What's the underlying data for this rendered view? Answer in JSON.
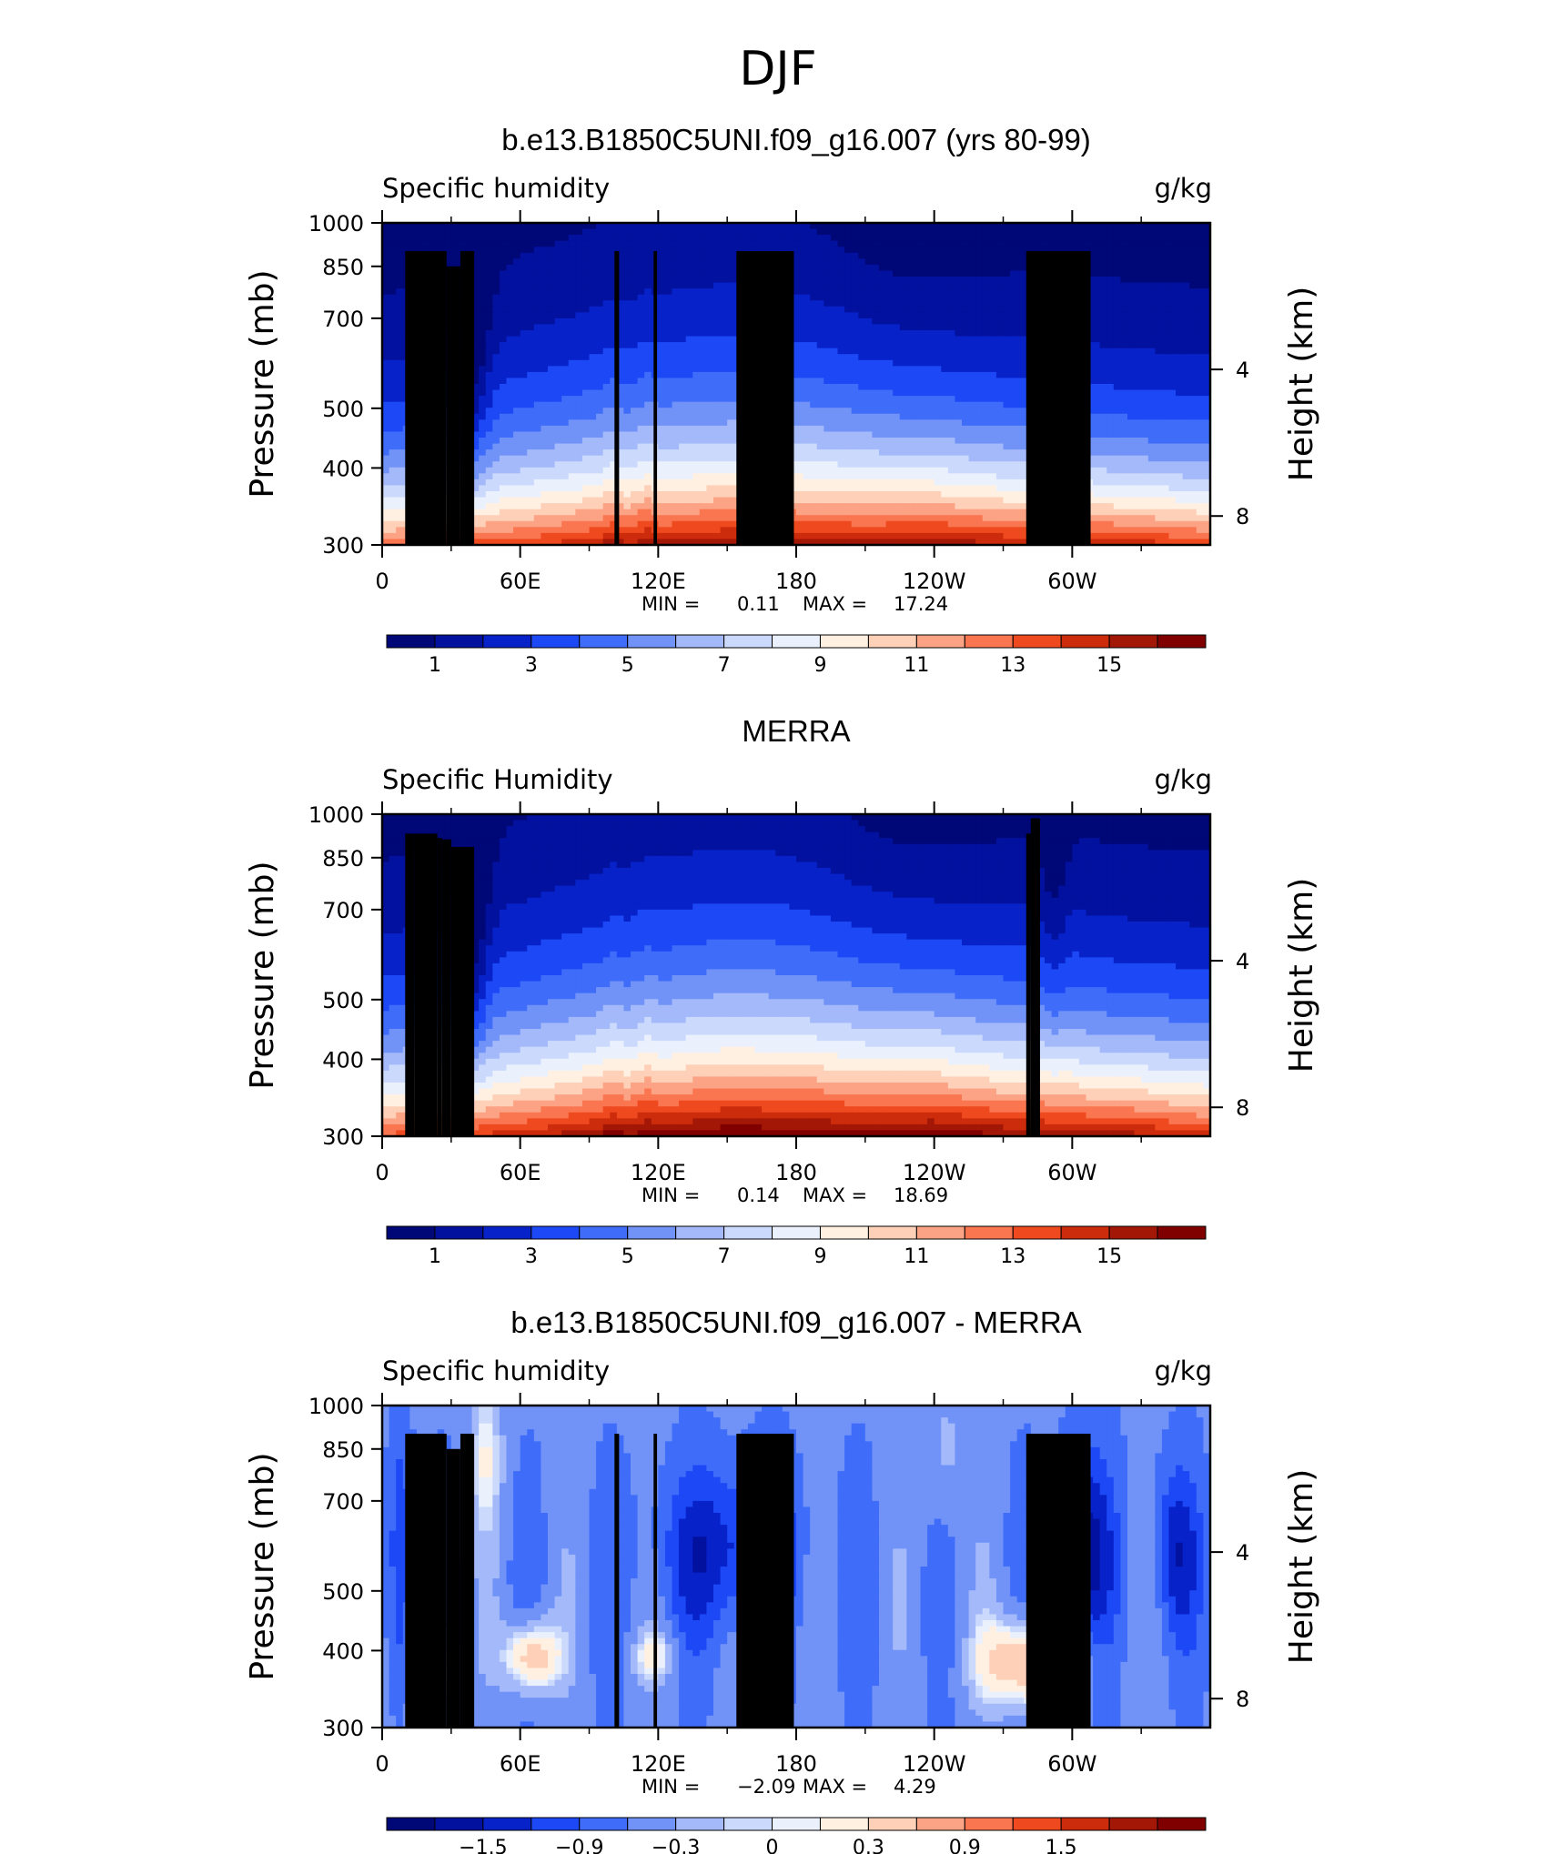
{
  "figure_title": "DJF",
  "colors": {
    "seq": [
      "#000777",
      "#03119f",
      "#0722c8",
      "#1d48f6",
      "#3f6df9",
      "#7193f7",
      "#a4b9fa",
      "#cad9fc",
      "#eaf1fd",
      "#fff0e2",
      "#fed0b8",
      "#fca385",
      "#f97650",
      "#ef4a1f",
      "#cd2c0c",
      "#a31707",
      "#800000"
    ],
    "diff": [
      "#000777",
      "#03119f",
      "#0722c8",
      "#1d48f6",
      "#3f6df9",
      "#7193f7",
      "#a4b9fa",
      "#cad9fc",
      "#eaf1fd",
      "#fff0e2",
      "#fed0b8",
      "#fca385",
      "#f97650",
      "#ef4a1f",
      "#cd2c0c",
      "#a31707",
      "#800000"
    ],
    "mask": "#000000"
  },
  "chart_data": [
    {
      "type": "contour",
      "title": "b.e13.B1850C5UNI.f09_g16.007 (yrs 80-99)",
      "left_label": "Specific humidity",
      "right_label": "g/kg",
      "ylabel": "Pressure (mb)",
      "y2label": "Height (km)",
      "y_ticks": [
        "300",
        "400",
        "500",
        "700",
        "850",
        "1000"
      ],
      "y2_ticks": [
        "8",
        "4"
      ],
      "x_ticks": [
        "0",
        "60E",
        "120E",
        "180",
        "120W",
        "60W"
      ],
      "min_label": "MIN =",
      "min_value": "0.11",
      "max_label": "MAX =",
      "max_value": "17.24",
      "colorbar_ticks": [
        "1",
        "3",
        "5",
        "7",
        "9",
        "11",
        "13",
        "15"
      ],
      "levels": [
        0,
        1,
        2,
        3,
        4,
        5,
        6,
        7,
        8,
        9,
        10,
        11,
        12,
        13,
        14,
        15,
        16,
        17
      ],
      "surface_q_by_longitude": {
        "lon": [
          0,
          30,
          60,
          90,
          120,
          150,
          180,
          210,
          240,
          270,
          300,
          330,
          360
        ],
        "q": [
          12.6,
          13.5,
          13.8,
          14.8,
          15.3,
          15.8,
          15.6,
          15.4,
          15.8,
          15.2,
          15.1,
          14.6,
          13.8
        ]
      }
    },
    {
      "type": "contour",
      "title": "MERRA",
      "left_label": "Specific Humidity",
      "right_label": "g/kg",
      "ylabel": "Pressure (mb)",
      "y2label": "Height (km)",
      "y_ticks": [
        "300",
        "400",
        "500",
        "700",
        "850",
        "1000"
      ],
      "y2_ticks": [
        "8",
        "4"
      ],
      "x_ticks": [
        "0",
        "60E",
        "120E",
        "180",
        "120W",
        "60W"
      ],
      "min_label": "MIN =",
      "min_value": "0.14",
      "max_label": "MAX =",
      "max_value": "18.69",
      "colorbar_ticks": [
        "1",
        "3",
        "5",
        "7",
        "9",
        "11",
        "13",
        "15"
      ],
      "levels": [
        0,
        1,
        2,
        3,
        4,
        5,
        6,
        7,
        8,
        9,
        10,
        11,
        12,
        13,
        14,
        15,
        16,
        17
      ],
      "surface_q_by_longitude": {
        "lon": [
          0,
          30,
          60,
          90,
          120,
          150,
          180,
          210,
          240,
          270,
          300,
          330,
          360
        ],
        "q": [
          13.2,
          14.0,
          14.6,
          15.8,
          16.4,
          17.2,
          17.0,
          16.6,
          17.0,
          16.2,
          15.8,
          15.4,
          14.4
        ]
      }
    },
    {
      "type": "contour",
      "title": "b.e13.B1850C5UNI.f09_g16.007 - MERRA",
      "left_label": "Specific humidity",
      "right_label": "g/kg",
      "ylabel": "Pressure (mb)",
      "y2label": "Height (km)",
      "y_ticks": [
        "300",
        "400",
        "500",
        "700",
        "850",
        "1000"
      ],
      "y2_ticks": [
        "8",
        "4"
      ],
      "x_ticks": [
        "0",
        "60E",
        "120E",
        "180",
        "120W",
        "60W"
      ],
      "min_label": "MIN =",
      "min_value": "−2.09",
      "max_label": "MAX =",
      "max_value": "4.29",
      "colorbar_ticks": [
        "−1.5",
        "−0.9",
        "−0.3",
        "0",
        "0.3",
        "0.9",
        "1.5"
      ],
      "levels": [
        -2.1,
        -1.8,
        -1.5,
        -1.2,
        -0.9,
        -0.6,
        -0.3,
        -0.1,
        0,
        0.1,
        0.3,
        0.6,
        0.9,
        1.2,
        1.5,
        1.8,
        2.1
      ]
    }
  ]
}
